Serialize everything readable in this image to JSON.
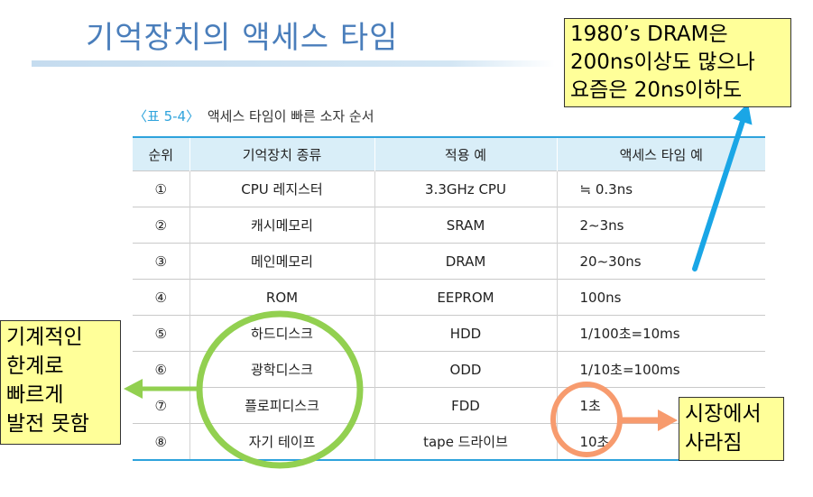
{
  "slide": {
    "title": "기억장치의 액세스 타임"
  },
  "caption": {
    "label": "〈표 5-4〉",
    "text": "액세스 타임이 빠른 소자 순서"
  },
  "table": {
    "headers": [
      "순위",
      "기억장치 종류",
      "적용 예",
      "액세스 타임 예"
    ],
    "rows": [
      [
        "①",
        "CPU 레지스터",
        "3.3GHz CPU",
        "≒ 0.3ns"
      ],
      [
        "②",
        "캐시메모리",
        "SRAM",
        "2∼3ns"
      ],
      [
        "③",
        "메인메모리",
        "DRAM",
        "20∼30ns"
      ],
      [
        "④",
        "ROM",
        "EEPROM",
        "100ns"
      ],
      [
        "⑤",
        "하드디스크",
        "HDD",
        "1/100초=10ms"
      ],
      [
        "⑥",
        "광학디스크",
        "ODD",
        "1/10초=100ms"
      ],
      [
        "⑦",
        "플로피디스크",
        "FDD",
        "1초"
      ],
      [
        "⑧",
        "자기 테이프",
        "tape 드라이브",
        "10초"
      ]
    ]
  },
  "callouts": {
    "dram_note": {
      "lines": [
        "1980’s DRAM은",
        "200ns이상도 많으나",
        "요즘은 20ns이하도"
      ]
    },
    "mechanical_limit": {
      "lines": [
        "기계적인",
        "한계로",
        "빠르게",
        "발전 못함"
      ]
    },
    "market_gone": {
      "lines": [
        "시장에서",
        "사라짐"
      ]
    }
  },
  "colors": {
    "title": "#4a7ebb",
    "accent": "#2ea3dc",
    "header_bg": "#d9eef8",
    "callout_bg": "#ffff99",
    "green": "#92d050",
    "orange": "#f79b6e",
    "blue_arrow": "#1aa6e6"
  }
}
